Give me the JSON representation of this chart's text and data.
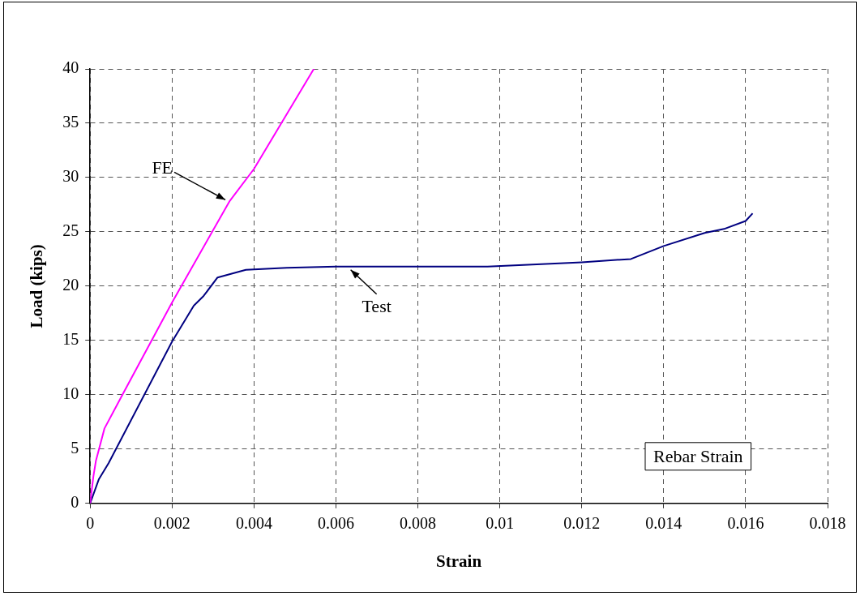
{
  "chart_data": {
    "type": "line",
    "xlabel": "Strain",
    "ylabel": "Load (kips)",
    "xlim": [
      0,
      0.018
    ],
    "xticks": [
      0,
      0.002,
      0.004,
      0.006,
      0.008,
      0.01,
      0.012,
      0.014,
      0.016,
      0.018
    ],
    "ylim": [
      0,
      40
    ],
    "yticks": [
      0,
      5,
      10,
      15,
      20,
      25,
      30,
      35,
      40
    ],
    "grid": true,
    "legend": false,
    "marker": "none",
    "line_style": "solid",
    "series": [
      {
        "color": "#ff00ff",
        "x": [
          0,
          8e-05,
          0.00014,
          0.00035,
          0.00076,
          0.002,
          0.0034,
          0.004,
          0.00546
        ],
        "values": [
          0,
          2.5,
          3.9,
          6.9,
          9.8,
          18.5,
          27.8,
          30.8,
          40
        ]
      },
      {
        "color": "#000080",
        "x": [
          0,
          0.00021,
          0.00045,
          0.002,
          0.00253,
          0.00277,
          0.00311,
          0.0038,
          0.0048,
          0.006,
          0.0097,
          0.012,
          0.0132,
          0.014,
          0.015,
          0.0155,
          0.016,
          0.01617
        ],
        "values": [
          0,
          2.2,
          3.7,
          14.9,
          18.2,
          19.1,
          20.8,
          21.5,
          21.7,
          21.8,
          21.8,
          22.2,
          22.5,
          23.7,
          24.9,
          25.3,
          26,
          26.7
        ]
      }
    ],
    "annotations": [
      {
        "text": "FE",
        "x": 0.0034,
        "y": 27.8
      },
      {
        "text": "Test",
        "x": 0.0063,
        "y": 21.8
      },
      "Rebar Strain"
    ]
  }
}
